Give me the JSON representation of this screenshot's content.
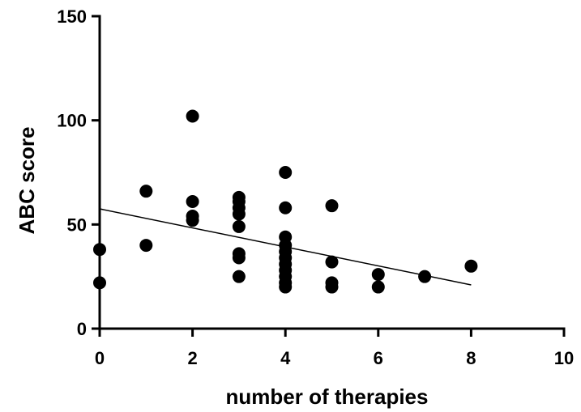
{
  "chart_data": {
    "type": "scatter",
    "title": "",
    "xlabel": "number of therapies",
    "ylabel": "ABC score",
    "xlim": [
      0,
      10
    ],
    "ylim": [
      0,
      150
    ],
    "xticks": [
      0,
      2,
      4,
      6,
      8,
      10
    ],
    "yticks": [
      0,
      50,
      100,
      150
    ],
    "xtick_labels": [
      "0",
      "2",
      "4",
      "6",
      "8",
      "10"
    ],
    "ytick_labels": [
      "0",
      "50",
      "100",
      "150"
    ],
    "grid": false,
    "legend": false,
    "marker_color": "#000000",
    "points": [
      {
        "x": 0,
        "y": 38
      },
      {
        "x": 0,
        "y": 22
      },
      {
        "x": 1,
        "y": 66
      },
      {
        "x": 1,
        "y": 40
      },
      {
        "x": 2,
        "y": 102
      },
      {
        "x": 2,
        "y": 61
      },
      {
        "x": 2,
        "y": 54
      },
      {
        "x": 2,
        "y": 52
      },
      {
        "x": 3,
        "y": 63
      },
      {
        "x": 3,
        "y": 61
      },
      {
        "x": 3,
        "y": 58
      },
      {
        "x": 3,
        "y": 55
      },
      {
        "x": 3,
        "y": 49
      },
      {
        "x": 3,
        "y": 36
      },
      {
        "x": 3,
        "y": 34
      },
      {
        "x": 3,
        "y": 25
      },
      {
        "x": 4,
        "y": 75
      },
      {
        "x": 4,
        "y": 58
      },
      {
        "x": 4,
        "y": 44
      },
      {
        "x": 4,
        "y": 40
      },
      {
        "x": 4,
        "y": 37
      },
      {
        "x": 4,
        "y": 34
      },
      {
        "x": 4,
        "y": 31
      },
      {
        "x": 4,
        "y": 28
      },
      {
        "x": 4,
        "y": 25
      },
      {
        "x": 4,
        "y": 22
      },
      {
        "x": 4,
        "y": 20
      },
      {
        "x": 5,
        "y": 59
      },
      {
        "x": 5,
        "y": 32
      },
      {
        "x": 5,
        "y": 22
      },
      {
        "x": 5,
        "y": 20
      },
      {
        "x": 6,
        "y": 26
      },
      {
        "x": 6,
        "y": 20
      },
      {
        "x": 7,
        "y": 25
      },
      {
        "x": 8,
        "y": 30
      }
    ],
    "regression_line": {
      "x": [
        0,
        8
      ],
      "y": [
        57.5,
        21
      ]
    }
  }
}
